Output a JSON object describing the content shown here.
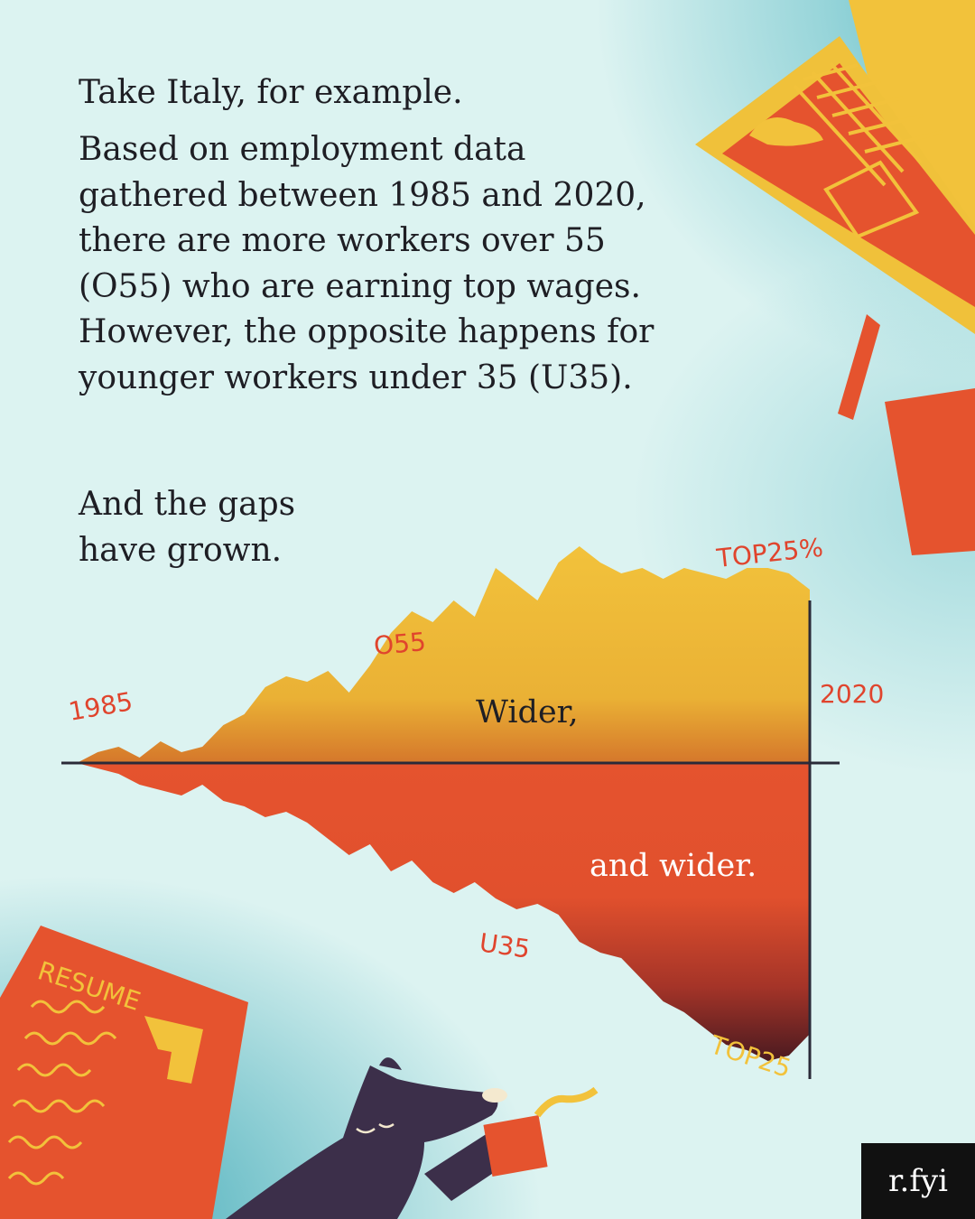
{
  "intro": {
    "heading": "Take Italy, for example.",
    "lines": [
      "Based on employment data",
      "gathered between 1985 and 2020,",
      "there are more workers over 55",
      "(O55) who are earning top wages.",
      "However, the opposite happens for",
      "younger workers under 35 (U35)."
    ]
  },
  "gaps": {
    "lines": [
      "And the gaps",
      "have grown."
    ]
  },
  "chart_data": {
    "type": "area",
    "x_start_label": "1985",
    "x_end_label": "2020",
    "x": [
      1985,
      1986,
      1987,
      1988,
      1989,
      1990,
      1991,
      1992,
      1993,
      1994,
      1995,
      1996,
      1997,
      1998,
      1999,
      2000,
      2001,
      2002,
      2003,
      2004,
      2005,
      2006,
      2007,
      2008,
      2009,
      2010,
      2011,
      2012,
      2013,
      2014,
      2015,
      2016,
      2017,
      2018,
      2019,
      2020
    ],
    "series": [
      {
        "name": "O55",
        "annotation": "TOP25%",
        "color": "#f2c23b",
        "values": [
          0,
          2,
          3,
          1,
          4,
          2,
          3,
          7,
          9,
          14,
          16,
          15,
          17,
          13,
          18,
          24,
          28,
          26,
          30,
          27,
          36,
          33,
          30,
          37,
          40,
          37,
          35,
          36,
          34,
          36,
          35,
          34,
          36,
          36,
          35,
          32
        ]
      },
      {
        "name": "U35",
        "annotation": "TOP25",
        "color": "#e5532e",
        "values": [
          0,
          -1,
          -2,
          -4,
          -5,
          -6,
          -4,
          -7,
          -8,
          -10,
          -9,
          -11,
          -14,
          -17,
          -15,
          -20,
          -18,
          -22,
          -24,
          -22,
          -25,
          -27,
          -26,
          -28,
          -33,
          -35,
          -36,
          -40,
          -44,
          -46,
          -49,
          -52,
          -53,
          -55,
          -54,
          -50
        ]
      }
    ],
    "annotations": {
      "wider": "Wider,",
      "wider2": "and wider."
    }
  },
  "illustration": {
    "resume_label": "RESUME"
  },
  "brand": {
    "label": "r.fyi"
  },
  "colors": {
    "background": "#dcf3f1",
    "teal": "#3fa9b7",
    "yellow": "#f2c23b",
    "orange": "#e5532e",
    "dark": "#5a1f24"
  }
}
